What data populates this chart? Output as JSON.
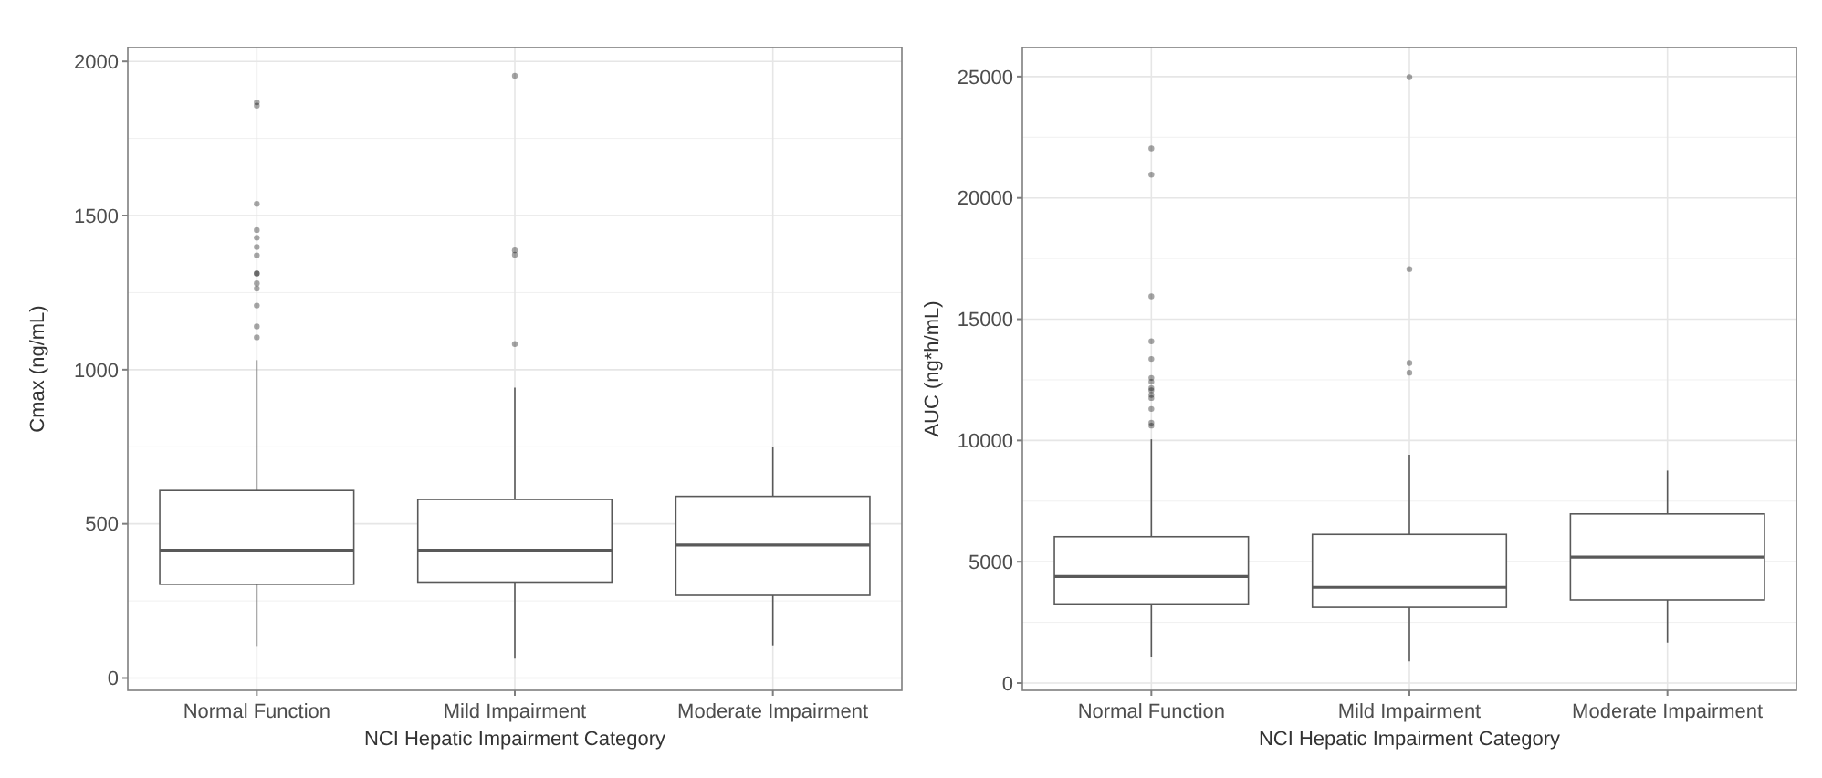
{
  "chart_data": [
    {
      "type": "box",
      "xlabel": "NCI Hepatic Impairment Category",
      "ylabel": "Cmax (ng/mL)",
      "categories": [
        "Normal Function",
        "Mild Impairment",
        "Moderate Impairment"
      ],
      "color": "#595959",
      "ylim": [
        -40,
        2045
      ],
      "yticks": [
        0,
        500,
        1000,
        1500,
        2000
      ],
      "grid": true,
      "boxes": [
        {
          "low": 104,
          "q1": 304,
          "median": 414,
          "q3": 608,
          "high": 1031,
          "outliers": [
            1867,
            1856,
            1538,
            1453,
            1428,
            1398,
            1371,
            1312,
            1312,
            1280,
            1263,
            1208,
            1140,
            1105
          ]
        },
        {
          "low": 63,
          "q1": 311,
          "median": 414,
          "q3": 579,
          "high": 942,
          "outliers": [
            1953,
            1387,
            1373,
            1083
          ]
        },
        {
          "low": 106,
          "q1": 268,
          "median": 431,
          "q3": 589,
          "high": 748
        }
      ]
    },
    {
      "type": "box",
      "xlabel": "NCI Hepatic Impairment Category",
      "ylabel": "AUC (ng*h/mL)",
      "categories": [
        "Normal Function",
        "Mild Impairment",
        "Moderate Impairment"
      ],
      "color": "#595959",
      "ylim": [
        -300,
        26200
      ],
      "yticks": [
        0,
        5000,
        10000,
        15000,
        20000,
        25000
      ],
      "grid": true,
      "boxes": [
        {
          "low": 1056,
          "q1": 3263,
          "median": 4390,
          "q3": 6033,
          "high": 10047,
          "outliers": [
            22040,
            20960,
            15940,
            14090,
            13360,
            12580,
            12420,
            12160,
            12070,
            11880,
            11750,
            11300,
            10730,
            10610
          ]
        },
        {
          "low": 892,
          "q1": 3122,
          "median": 3944,
          "q3": 6127,
          "high": 9413,
          "outliers": [
            24977,
            17066,
            13192,
            12793
          ]
        },
        {
          "low": 1667,
          "q1": 3427,
          "median": 5188,
          "q3": 6972,
          "high": 8756
        }
      ]
    }
  ]
}
